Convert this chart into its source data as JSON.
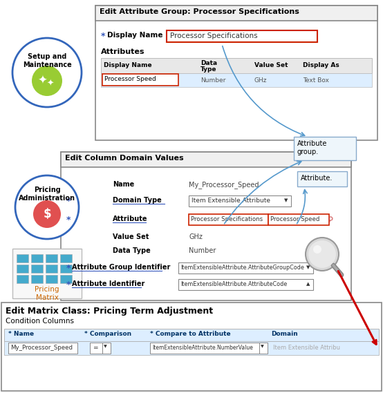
{
  "bg_color": "#ffffff",
  "title1": "Edit Attribute Group: Processor Specifications",
  "display_name_label": "Display Name",
  "display_name_value": "Processor Specifications",
  "attributes_label": "Attributes",
  "table_headers": [
    "Display Name",
    "Data\nType",
    "Value Set",
    "Display As"
  ],
  "table_row": [
    "Processor Speed",
    "Number",
    "GHz",
    "Text Box"
  ],
  "title2": "Edit Column Domain Values",
  "name_label": "Name",
  "name_value": "My_Processor_Speed",
  "domain_type_label": "Domain Type",
  "domain_type_value": "Item Extensible Attribute",
  "attribute_label": "Attribute",
  "attribute_val1": "Processor Specifications",
  "attribute_val2": "Processor Speed",
  "value_set_label": "Value Set",
  "value_set_value": "GHz",
  "data_type_label": "Data Type",
  "data_type_value": "Number",
  "attr_group_id_label": "Attribute Group Identifier",
  "attr_group_id_value": "ItemExtensibleAttribute.AttributeGroupCode",
  "attr_id_label": "Attribute Identifier",
  "attr_id_value": "ItemExtensibleAttribute.AttributeCode",
  "title3": "Edit Matrix Class: Pricing Term Adjustment",
  "condition_columns": "Condition Columns",
  "bottom_headers": [
    "* Name",
    "* Comparison",
    "* Compare to Attribute",
    "Domain"
  ],
  "bottom_row": [
    "My_Processor_Speed",
    "=",
    "ItemExtensibleAttribute.NumberValue",
    "Item Extensible Attribu"
  ],
  "callout1": "Attribute\ngroup.",
  "callout2": "Attribute.",
  "setup_text": "Setup and\nMaintenance",
  "pricing_admin_text": "Pricing\nAdministration",
  "pricing_matrix_text": "Pricing\nMatrix",
  "green_circle_color": "#99cc33",
  "red_circle_color": "#e05050",
  "blue_circle_color": "#3366bb",
  "arrow_color_blue": "#5599cc",
  "arrow_color_red": "#cc0000",
  "row_highlight": "#ddeeff",
  "box_border_red": "#cc2200",
  "required_star_color": "#3355bb",
  "underline_color": "#3355bb",
  "panel_border": "#888888",
  "panel_title_bg": "#f0f0f0"
}
